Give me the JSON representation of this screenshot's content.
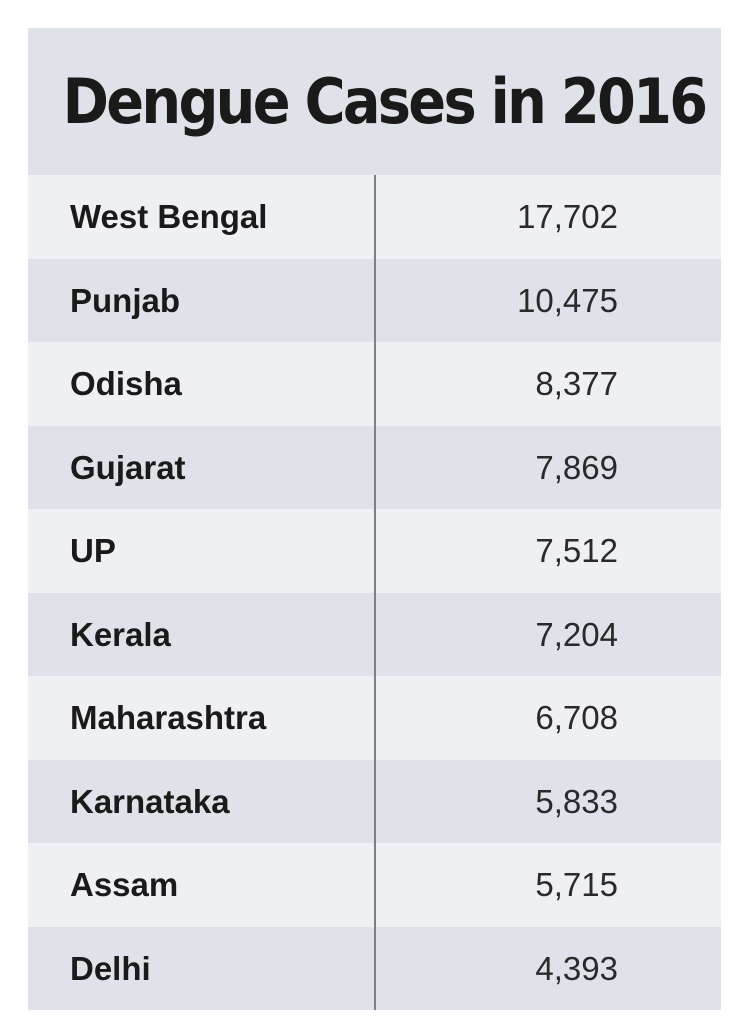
{
  "chart_data": {
    "type": "table",
    "title": "Dengue Cases in 2016",
    "columns": [
      "",
      ""
    ],
    "rows": [
      {
        "state": "West Bengal",
        "cases": "17,702",
        "value": 17702
      },
      {
        "state": "Punjab",
        "cases": "10,475",
        "value": 10475
      },
      {
        "state": "Odisha",
        "cases": "8,377",
        "value": 8377
      },
      {
        "state": "Gujarat",
        "cases": "7,869",
        "value": 7869
      },
      {
        "state": "UP",
        "cases": "7,512",
        "value": 7512
      },
      {
        "state": "Kerala",
        "cases": "7,204",
        "value": 7204
      },
      {
        "state": "Maharashtra",
        "cases": "6,708",
        "value": 6708
      },
      {
        "state": "Karnataka",
        "cases": "5,833",
        "value": 5833
      },
      {
        "state": "Assam",
        "cases": "5,715",
        "value": 5715
      },
      {
        "state": "Delhi",
        "cases": "4,393",
        "value": 4393
      }
    ]
  },
  "colors": {
    "band_light": "#eef0f4",
    "band_dark": "#dfe2e8",
    "text": "#1a1a1a",
    "divider": "#7d7f84"
  }
}
